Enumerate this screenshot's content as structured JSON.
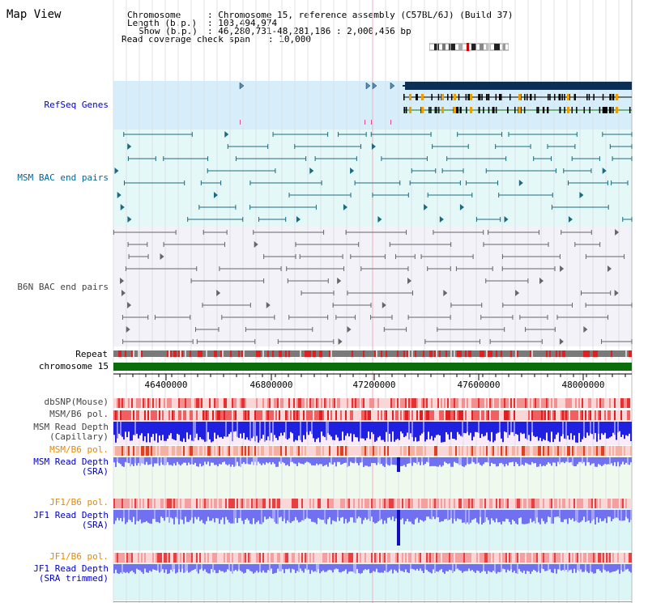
{
  "map_title": "Map View",
  "info": {
    "chromosome_key": "Chromosome",
    "chromosome_val": ": Chromosome 15, reference assembly (C57BL/6J) (Build 37)",
    "length_key": "Length (b.p.)",
    "length_val": ": 103,494,974",
    "show_key": "Show (b.p.)",
    "show_val": ": 46,280,731-48,281,186 : 2,000,456 bp",
    "span_key": "Read coverage check span",
    "span_val": ": 10,000"
  },
  "tracks": {
    "refseq": "RefSeq Genes",
    "msm_bac": "MSM BAC end pairs",
    "b6n_bac": "B6N BAC end pairs",
    "repeat": "Repeat",
    "chromosome": "chromosome 15",
    "dbsnp": "dbSNP(Mouse)",
    "msm_b6_pol_1": "MSM/B6 pol.",
    "msm_read_depth_cap_1": "MSM Read Depth",
    "msm_read_depth_cap_2": "(Capillary)",
    "msm_b6_pol_2": "MSM/B6 pol.",
    "msm_read_depth_sra_1": "MSM Read Depth",
    "msm_read_depth_sra_2": "(SRA)",
    "jf1_b6_pol_1": "JF1/B6 pol.",
    "jf1_read_depth_sra_1": "JF1 Read Depth",
    "jf1_read_depth_sra_2": "(SRA)",
    "jf1_b6_pol_2": "JF1/B6 pol.",
    "jf1_read_depth_trim_1": "JF1 Read Depth",
    "jf1_read_depth_trim_2": "(SRA trimmed)"
  },
  "axis_ticks": [
    "46400000",
    "46800000",
    "47200000",
    "47600000",
    "48000000"
  ],
  "colors": {
    "refseq_bg": "#d6eefa",
    "msm_bac_bg": "#e4f8f8",
    "b6n_bac_bg": "#f2f2f8",
    "msm_line": "#1a6b7f",
    "b6n_line": "#666666",
    "chromosome_bar": "#0a6e0a",
    "gene_dark": "#0c2f55",
    "depth_blue": "#2020e0",
    "depth_light": "#7070f0",
    "pol_red": "#e83030",
    "pol_pink": "#f4a0a0"
  }
}
